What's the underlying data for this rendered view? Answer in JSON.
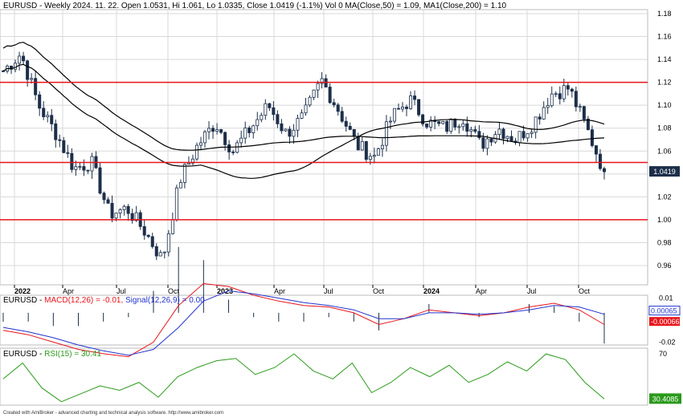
{
  "header": {
    "price_text": "EURUSD - Weekly 2024. 11. 22. Open 1.0531, Hi 1.061, Lo 1.0335, Close 1.0419 (-1.1%) Vol 0 MA(Close,50) = 1.09, MA1(Close,200) = 1.10",
    "macd_prefix": "EURUSD - ",
    "macd_label": "MACD(12,26) = -0.01,",
    "signal_label": "Signal(12,26,9) = 0.00",
    "rsi_prefix": "EURUSD - ",
    "rsi_label": "RSI(15) = 30.41"
  },
  "footer": "Created with AmiBroker - advanced charting and technical analysis software. http://www.amibroker.com",
  "colors": {
    "bull": "#ffffff",
    "bear": "#1c2f4a",
    "outline": "#1c2f4a",
    "support_line": "#e8141b",
    "ma": "#000000",
    "macd": "#e8141b",
    "signal": "#2233cc",
    "rsi": "#2a9a1a",
    "grid": "#d8d8d8"
  },
  "chart_data": [
    {
      "type": "candlestick",
      "title": "EURUSD - Weekly",
      "ylim": [
        0.94,
        1.19
      ],
      "yticks": [
        "1.18",
        "1.16",
        "1.14",
        "1.12",
        "1.10",
        "1.08",
        "1.06",
        "1.04",
        "1.02",
        "1.00",
        "0.98",
        "0.96"
      ],
      "xticks": [
        "2022",
        "Apr",
        "Jul",
        "Oct",
        "2023",
        "Apr",
        "Jul",
        "Oct",
        "2024",
        "Apr",
        "Jul",
        "Oct"
      ],
      "last_price_label": "1.0419",
      "horizontal_lines": [
        1.12,
        1.05,
        1.0
      ],
      "ohlc_key_points": [
        {
          "x": "2022-01",
          "close": 1.13
        },
        {
          "x": "2022-02",
          "close": 1.145
        },
        {
          "x": "2022-03",
          "close": 1.1
        },
        {
          "x": "2022-04",
          "close": 1.075
        },
        {
          "x": "2022-05",
          "close": 1.045
        },
        {
          "x": "2022-06",
          "close": 1.05
        },
        {
          "x": "2022-07",
          "close": 1.005
        },
        {
          "x": "2022-08",
          "close": 1.01
        },
        {
          "x": "2022-09",
          "close": 0.99
        },
        {
          "x": "2022-10",
          "close": 0.965
        },
        {
          "x": "2022-11",
          "close": 1.035
        },
        {
          "x": "2022-12",
          "close": 1.065
        },
        {
          "x": "2023-01",
          "close": 1.085
        },
        {
          "x": "2023-02",
          "close": 1.06
        },
        {
          "x": "2023-03",
          "close": 1.08
        },
        {
          "x": "2023-04",
          "close": 1.1
        },
        {
          "x": "2023-05",
          "close": 1.075
        },
        {
          "x": "2023-06",
          "close": 1.09
        },
        {
          "x": "2023-07",
          "close": 1.122
        },
        {
          "x": "2023-08",
          "close": 1.095
        },
        {
          "x": "2023-09",
          "close": 1.065
        },
        {
          "x": "2023-10",
          "close": 1.055
        },
        {
          "x": "2023-11",
          "close": 1.09
        },
        {
          "x": "2023-12",
          "close": 1.105
        },
        {
          "x": "2024-01",
          "close": 1.085
        },
        {
          "x": "2024-02",
          "close": 1.08
        },
        {
          "x": "2024-03",
          "close": 1.09
        },
        {
          "x": "2024-04",
          "close": 1.065
        },
        {
          "x": "2024-05",
          "close": 1.08
        },
        {
          "x": "2024-06",
          "close": 1.07
        },
        {
          "x": "2024-07",
          "close": 1.085
        },
        {
          "x": "2024-08",
          "close": 1.11
        },
        {
          "x": "2024-09",
          "close": 1.115
        },
        {
          "x": "2024-10",
          "close": 1.08
        },
        {
          "x": "2024-11",
          "close": 1.0419
        }
      ]
    },
    {
      "type": "line",
      "title": "MACD",
      "yticks": [
        "0.01",
        "0.00065",
        "-0.00066",
        "-0.02"
      ],
      "series": [
        {
          "name": "MACD(12,26)",
          "values": [
            -0.012,
            -0.015,
            -0.02,
            -0.025,
            -0.028,
            -0.03,
            -0.02,
            0.005,
            0.02,
            0.018,
            0.012,
            0.008,
            0.005,
            0.004,
            0.0,
            -0.008,
            -0.004,
            0.002,
            0.0,
            -0.002,
            0.0,
            0.004,
            0.0065,
            0.002,
            -0.008
          ]
        },
        {
          "name": "Signal(12,26,9)",
          "values": [
            -0.01,
            -0.013,
            -0.017,
            -0.022,
            -0.026,
            -0.029,
            -0.025,
            -0.01,
            0.008,
            0.015,
            0.013,
            0.01,
            0.007,
            0.005,
            0.002,
            -0.004,
            -0.004,
            0.0,
            0.0,
            -0.001,
            0.0,
            0.002,
            0.005,
            0.004,
            -0.001
          ]
        }
      ]
    },
    {
      "type": "line",
      "title": "RSI",
      "yticks": [
        "70",
        "30.4085"
      ],
      "series": [
        {
          "name": "RSI(15)",
          "values": [
            48,
            62,
            40,
            28,
            35,
            42,
            38,
            45,
            32,
            50,
            58,
            64,
            66,
            52,
            58,
            70,
            55,
            48,
            62,
            36,
            45,
            58,
            50,
            60,
            45,
            52,
            63,
            55,
            70,
            65,
            45,
            30.41
          ]
        }
      ]
    }
  ]
}
